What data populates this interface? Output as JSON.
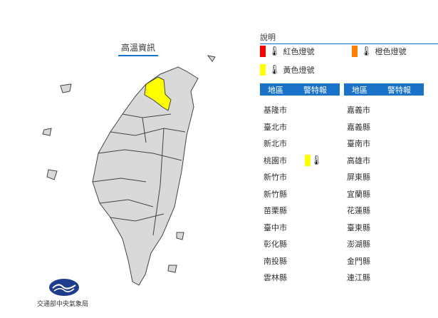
{
  "map": {
    "title": "高溫資訊",
    "highlighted": "桃園市",
    "highlight_color": "#ffff00"
  },
  "legend": {
    "title": "說明",
    "items": [
      {
        "label": "紅色燈號",
        "color": "#ff0000",
        "icon": "thermometer-icon"
      },
      {
        "label": "橙色燈號",
        "color": "#ff8000",
        "icon": "thermometer-icon"
      },
      {
        "label": "黃色燈號",
        "color": "#ffff00",
        "icon": "thermometer-icon"
      }
    ]
  },
  "table": {
    "headers": [
      "地區",
      "警特報"
    ],
    "left": [
      {
        "name": "基隆市"
      },
      {
        "name": "臺北市"
      },
      {
        "name": "新北市"
      },
      {
        "name": "桃園市",
        "alert": "yellow"
      },
      {
        "name": "新竹市"
      },
      {
        "name": "新竹縣"
      },
      {
        "name": "苗栗縣"
      },
      {
        "name": "臺中市"
      },
      {
        "name": "彰化縣"
      },
      {
        "name": "南投縣"
      },
      {
        "name": "雲林縣"
      }
    ],
    "right": [
      {
        "name": "嘉義市"
      },
      {
        "name": "嘉義縣"
      },
      {
        "name": "臺南市"
      },
      {
        "name": "高雄市"
      },
      {
        "name": "屏東縣"
      },
      {
        "name": "宜蘭縣"
      },
      {
        "name": "花蓮縣"
      },
      {
        "name": "臺東縣"
      },
      {
        "name": "澎湖縣"
      },
      {
        "name": "金門縣"
      },
      {
        "name": "連江縣"
      }
    ]
  },
  "logo": {
    "text": "交通部中央氣象局"
  }
}
